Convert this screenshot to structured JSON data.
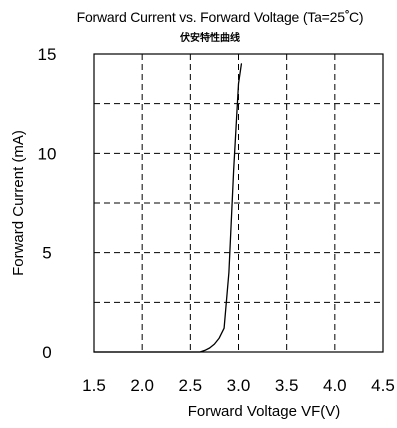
{
  "chart_data": {
    "type": "line",
    "title": "Forward Current vs. Forward Voltage (Ta=25",
    "title_degree": "°",
    "title_unit": "C)",
    "subtitle": "伏安特性曲线",
    "xlabel": "Forward Voltage  VF(V)",
    "ylabel": "Forward Current (mA)",
    "xlim": [
      1.5,
      4.5
    ],
    "ylim": [
      0,
      15
    ],
    "x_ticks": [
      "1.5",
      "2.0",
      "2.5",
      "3.0",
      "3.5",
      "4.0",
      "4.5"
    ],
    "y_ticks": [
      "0",
      "5",
      "10",
      "15"
    ],
    "grid": true,
    "grid_style": "dashed",
    "legend": false,
    "series": [
      {
        "color": "#000000",
        "x": [
          1.5,
          2.0,
          2.5,
          2.6,
          2.65,
          2.7,
          2.75,
          2.8,
          2.85,
          2.9,
          2.95,
          3.0,
          3.03
        ],
        "y": [
          0,
          0,
          0,
          0,
          0.08,
          0.2,
          0.4,
          0.7,
          1.2,
          4.0,
          9.2,
          13.5,
          14.5
        ]
      }
    ]
  }
}
